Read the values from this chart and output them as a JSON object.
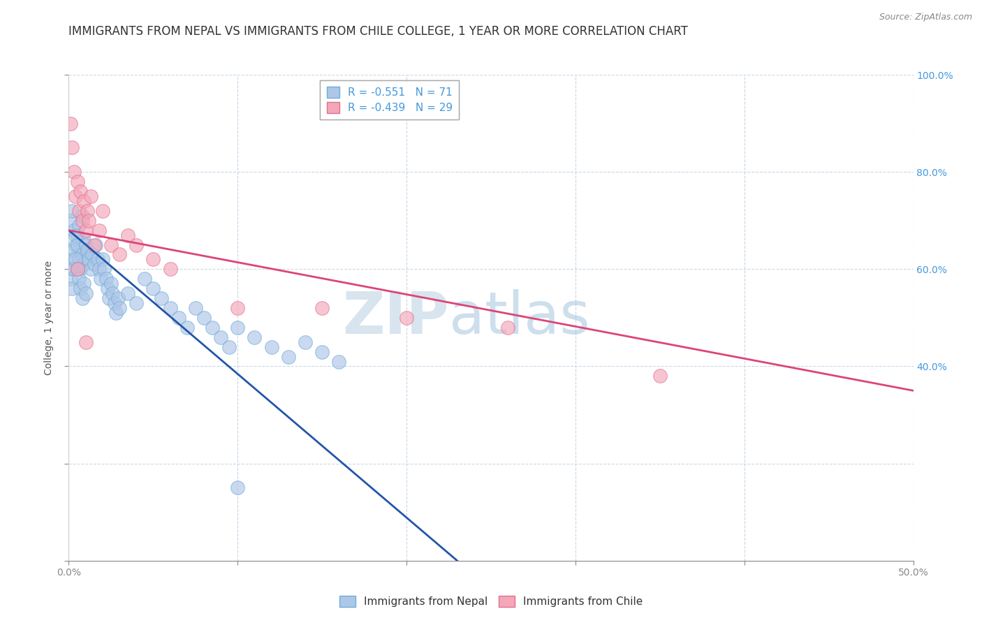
{
  "title": "IMMIGRANTS FROM NEPAL VS IMMIGRANTS FROM CHILE COLLEGE, 1 YEAR OR MORE CORRELATION CHART",
  "source": "Source: ZipAtlas.com",
  "ylabel": "College, 1 year or more",
  "xlim": [
    0.0,
    0.5
  ],
  "ylim": [
    0.0,
    1.0
  ],
  "xticks": [
    0.0,
    0.1,
    0.2,
    0.3,
    0.4,
    0.5
  ],
  "xticklabels": [
    "0.0%",
    "",
    "",
    "",
    "",
    "50.0%"
  ],
  "yticks": [
    0.0,
    0.2,
    0.4,
    0.6,
    0.8,
    1.0
  ],
  "right_yticklabels": [
    "",
    "40.0%",
    "60.0%",
    "80.0%",
    "100.0%"
  ],
  "right_yticks": [
    0.0,
    0.4,
    0.6,
    0.8,
    1.0
  ],
  "nepal_color": "#aec6e8",
  "nepal_edge": "#6baed6",
  "chile_color": "#f4a7b9",
  "chile_edge": "#e07090",
  "nepal_line_color": "#2255aa",
  "chile_line_color": "#dd4477",
  "nepal_R": -0.551,
  "nepal_N": 71,
  "chile_R": -0.439,
  "chile_N": 29,
  "watermark_zip": "ZIP",
  "watermark_atlas": "atlas",
  "legend_label_nepal": "Immigrants from Nepal",
  "legend_label_chile": "Immigrants from Chile",
  "nepal_line_x0": 0.0,
  "nepal_line_y0": 0.68,
  "nepal_line_x1": 0.23,
  "nepal_line_y1": 0.0,
  "chile_line_x0": 0.0,
  "chile_line_y0": 0.68,
  "chile_line_x1": 0.5,
  "chile_line_y1": 0.35,
  "grid_color": "#c8d8e8",
  "background_color": "#ffffff",
  "right_ytick_color": "#4499dd",
  "title_fontsize": 12,
  "axis_label_fontsize": 10,
  "tick_fontsize": 10,
  "legend_fontsize": 11,
  "nepal_scatter_x": [
    0.001,
    0.002,
    0.003,
    0.004,
    0.005,
    0.006,
    0.007,
    0.008,
    0.009,
    0.01,
    0.001,
    0.002,
    0.003,
    0.004,
    0.005,
    0.006,
    0.007,
    0.008,
    0.009,
    0.01,
    0.011,
    0.012,
    0.013,
    0.014,
    0.015,
    0.016,
    0.017,
    0.018,
    0.019,
    0.02,
    0.001,
    0.002,
    0.003,
    0.004,
    0.005,
    0.006,
    0.007,
    0.008,
    0.009,
    0.01,
    0.021,
    0.022,
    0.023,
    0.024,
    0.025,
    0.026,
    0.027,
    0.028,
    0.029,
    0.03,
    0.035,
    0.04,
    0.045,
    0.05,
    0.055,
    0.06,
    0.065,
    0.07,
    0.075,
    0.08,
    0.085,
    0.09,
    0.095,
    0.1,
    0.11,
    0.12,
    0.13,
    0.14,
    0.15,
    0.16,
    0.1
  ],
  "nepal_scatter_y": [
    0.7,
    0.72,
    0.68,
    0.65,
    0.67,
    0.69,
    0.64,
    0.71,
    0.66,
    0.63,
    0.62,
    0.6,
    0.64,
    0.67,
    0.65,
    0.62,
    0.6,
    0.63,
    0.61,
    0.65,
    0.64,
    0.62,
    0.6,
    0.63,
    0.61,
    0.65,
    0.62,
    0.6,
    0.58,
    0.62,
    0.58,
    0.56,
    0.6,
    0.62,
    0.6,
    0.58,
    0.56,
    0.54,
    0.57,
    0.55,
    0.6,
    0.58,
    0.56,
    0.54,
    0.57,
    0.55,
    0.53,
    0.51,
    0.54,
    0.52,
    0.55,
    0.53,
    0.58,
    0.56,
    0.54,
    0.52,
    0.5,
    0.48,
    0.52,
    0.5,
    0.48,
    0.46,
    0.44,
    0.48,
    0.46,
    0.44,
    0.42,
    0.45,
    0.43,
    0.41,
    0.15
  ],
  "chile_scatter_x": [
    0.001,
    0.002,
    0.003,
    0.004,
    0.005,
    0.006,
    0.007,
    0.008,
    0.009,
    0.01,
    0.011,
    0.012,
    0.013,
    0.015,
    0.018,
    0.02,
    0.025,
    0.03,
    0.035,
    0.04,
    0.05,
    0.06,
    0.1,
    0.15,
    0.2,
    0.26,
    0.35,
    0.005,
    0.01
  ],
  "chile_scatter_y": [
    0.9,
    0.85,
    0.8,
    0.75,
    0.78,
    0.72,
    0.76,
    0.7,
    0.74,
    0.68,
    0.72,
    0.7,
    0.75,
    0.65,
    0.68,
    0.72,
    0.65,
    0.63,
    0.67,
    0.65,
    0.62,
    0.6,
    0.52,
    0.52,
    0.5,
    0.48,
    0.38,
    0.6,
    0.45
  ]
}
